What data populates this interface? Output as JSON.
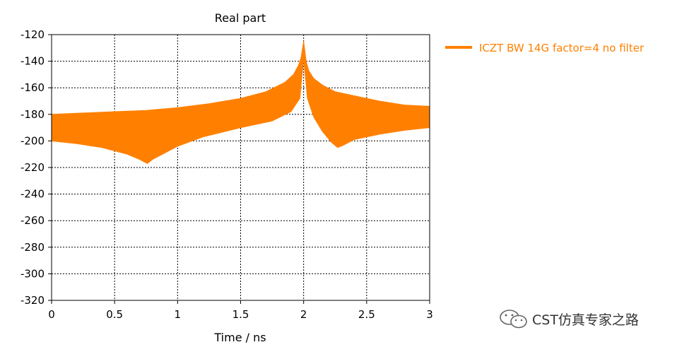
{
  "chart_data": {
    "type": "line",
    "title": "Real part",
    "xlabel": "Time / ns",
    "ylabel": "",
    "xlim": [
      0,
      3
    ],
    "ylim": [
      -320,
      -120
    ],
    "xticks": [
      0,
      0.5,
      1,
      1.5,
      2,
      2.5,
      3
    ],
    "yticks": [
      -120,
      -140,
      -160,
      -180,
      -200,
      -220,
      -240,
      -260,
      -280,
      -300,
      -320
    ],
    "xtick_labels": [
      "0",
      "0.5",
      "1",
      "1.5",
      "2",
      "2.5",
      "3"
    ],
    "ytick_labels": [
      "-120",
      "-140",
      "-160",
      "-180",
      "-200",
      "-220",
      "-240",
      "-260",
      "-280",
      "-300",
      "-320"
    ],
    "grid": true,
    "legend_position": "right",
    "series": [
      {
        "name": "ICZT BW 14G factor=4 no filter",
        "color": "#ff8000",
        "style": "dense oscillating band",
        "upper_envelope": {
          "x": [
            0,
            0.25,
            0.5,
            0.75,
            1,
            1.25,
            1.5,
            1.7,
            1.85,
            1.92,
            1.96,
            1.98,
            2.0,
            2.02,
            2.04,
            2.08,
            2.15,
            2.25,
            2.4,
            2.6,
            2.8,
            3.0
          ],
          "y": [
            -180,
            -179,
            -178,
            -177,
            -175,
            -172,
            -168,
            -163,
            -156,
            -150,
            -143,
            -137,
            -125,
            -140,
            -147,
            -153,
            -158,
            -163,
            -166,
            -170,
            -173,
            -174
          ]
        },
        "lower_envelope": {
          "x": [
            0,
            0.2,
            0.4,
            0.6,
            0.7,
            0.76,
            0.8,
            0.9,
            1.0,
            1.2,
            1.5,
            1.75,
            1.9,
            1.97,
            2.0,
            2.03,
            2.08,
            2.15,
            2.22,
            2.27,
            2.32,
            2.4,
            2.6,
            2.8,
            3.0
          ],
          "y": [
            -200,
            -202,
            -205,
            -210,
            -214,
            -217,
            -214,
            -209,
            -204,
            -197,
            -190,
            -185,
            -178,
            -168,
            -138,
            -168,
            -182,
            -193,
            -201,
            -205,
            -203,
            -199,
            -195,
            -192,
            -190
          ]
        }
      }
    ]
  },
  "watermark": {
    "text": "CST仿真专家之路",
    "icon": "wechat-icon"
  }
}
